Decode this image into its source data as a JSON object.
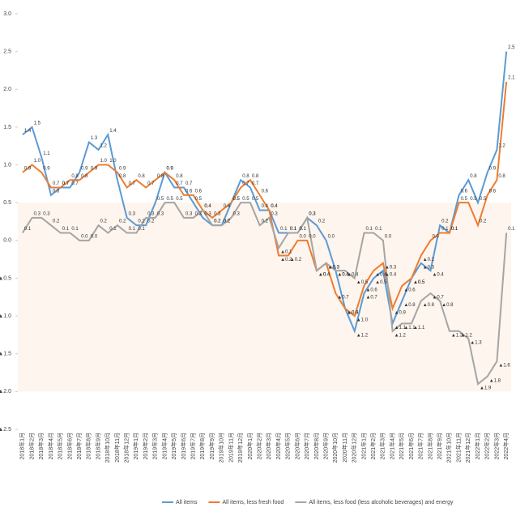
{
  "chart_data": {
    "type": "line",
    "categories": [
      "2018年1月",
      "2018年2月",
      "2018年3月",
      "2018年4月",
      "2018年5月",
      "2018年6月",
      "2018年7月",
      "2018年8月",
      "2018年9月",
      "2018年10月",
      "2018年11月",
      "2018年12月",
      "2019年1月",
      "2019年2月",
      "2019年3月",
      "2019年4月",
      "2019年5月",
      "2019年6月",
      "2019年7月",
      "2019年8月",
      "2019年9月",
      "2019年10月",
      "2019年11月",
      "2019年12月",
      "2020年1月",
      "2020年2月",
      "2020年3月",
      "2020年4月",
      "2020年5月",
      "2020年6月",
      "2020年7月",
      "2020年8月",
      "2020年9月",
      "2020年10月",
      "2020年11月",
      "2020年12月",
      "2021年1月",
      "2021年2月",
      "2021年3月",
      "2021年4月",
      "2021年5月",
      "2021年6月",
      "2021年7月",
      "2021年8月",
      "2021年9月",
      "2021年10月",
      "2021年11月",
      "2021年12月",
      "2022年1月",
      "2022年2月",
      "2022年3月",
      "2022年4月"
    ],
    "series": [
      {
        "name": "All items",
        "color": "#5b9bd5",
        "values": [
          1.4,
          1.5,
          1.1,
          0.6,
          0.7,
          0.7,
          0.9,
          1.3,
          1.2,
          1.4,
          0.8,
          0.3,
          0.2,
          0.2,
          0.5,
          0.9,
          0.7,
          0.7,
          0.5,
          0.3,
          0.2,
          0.2,
          0.5,
          0.8,
          0.7,
          0.4,
          0.4,
          0.1,
          0.1,
          0.1,
          0.3,
          0.2,
          0,
          -0.4,
          -0.9,
          -1.2,
          -0.7,
          -0.5,
          -0.4,
          -1.1,
          -0.8,
          -0.5,
          -0.3,
          -0.4,
          0.2,
          0.1,
          0.6,
          0.8,
          0.5,
          0.9,
          1.2,
          2.5
        ],
        "value_labels": [
          "1.4",
          "1.5",
          "1.1",
          "0.6",
          "0.7",
          "0.7",
          "0.9",
          "1.3",
          "1.2",
          "1.4",
          "0.8",
          "0.3",
          "0.2",
          "0.2",
          "0.5",
          "0.9",
          "0.7",
          "0.7",
          "0.5",
          "0.3",
          "0.2",
          "0.2",
          "0.5",
          "0.8",
          "0.7",
          "0.4",
          "0.4",
          "0.1",
          "0.1",
          "0.1",
          "0.3",
          "0.2",
          "0.0",
          "▲0.4",
          "▲0.9",
          "▲1.2",
          "▲0.7",
          "▲0.5",
          "▲0.4",
          "▲1.1",
          "▲0.8",
          "▲0.5",
          "▲0.3",
          "▲0.4",
          "0.2",
          "0.1",
          "0.6",
          "0.8",
          "0.5",
          "0.9",
          "1.2",
          "2.5"
        ]
      },
      {
        "name": "All items, less fresh food",
        "color": "#ed7d31",
        "values": [
          0.9,
          1.0,
          0.9,
          0.7,
          0.7,
          0.8,
          0.8,
          0.9,
          1.0,
          1.0,
          0.9,
          0.7,
          0.8,
          0.7,
          0.8,
          0.9,
          0.8,
          0.6,
          0.6,
          0.4,
          0.3,
          0.4,
          0.5,
          0.7,
          0.8,
          0.6,
          0.4,
          -0.2,
          -0.2,
          0,
          0,
          -0.4,
          -0.3,
          -0.7,
          -0.9,
          -1.0,
          -0.6,
          -0.4,
          -0.3,
          -0.9,
          -0.6,
          -0.5,
          -0.2,
          0,
          0.1,
          0.1,
          0.5,
          0.5,
          0.2,
          0.6,
          0.8,
          2.1
        ],
        "value_labels": [
          "0.9",
          "1.0",
          "0.9",
          "0.7",
          "0.7",
          "0.8",
          "0.8",
          "0.9",
          "1.0",
          "1.0",
          "0.9",
          "0.7",
          "0.8",
          "0.7",
          "0.8",
          "0.9",
          "0.8",
          "0.6",
          "0.6",
          "0.4",
          "0.3",
          "0.4",
          "0.5",
          "0.7",
          "0.8",
          "0.6",
          "0.4",
          "▲0.2",
          "▲0.2",
          "0.0",
          "0.0",
          "▲0.4",
          "▲0.3",
          "▲0.7",
          "▲0.9",
          "▲1.0",
          "▲0.6",
          "▲0.4",
          "▲0.3",
          "▲0.9",
          "▲0.6",
          "▲0.5",
          "▲0.2",
          "0.0",
          "0.1",
          "0.1",
          "0.5",
          "0.5",
          "0.2",
          "0.6",
          "0.8",
          "2.1"
        ]
      },
      {
        "name": "All items, less food (less alcoholic beverages) and energy",
        "color": "#a5a5a5",
        "values": [
          0.1,
          0.3,
          0.3,
          0.2,
          0.1,
          0.1,
          0,
          0,
          0.2,
          0.1,
          0.2,
          0.1,
          0.1,
          0.3,
          0.3,
          0.5,
          0.5,
          0.3,
          0.3,
          0.4,
          0.2,
          0.2,
          0.3,
          0.5,
          0.5,
          0.2,
          0.3,
          -0.1,
          0.1,
          0.1,
          0.3,
          -0.4,
          -0.3,
          -0.4,
          -0.4,
          -0.5,
          0.1,
          0.1,
          0,
          -1.2,
          -1.1,
          -1.1,
          -0.8,
          -0.7,
          -0.8,
          -1.2,
          -1.2,
          -1.3,
          -1.9,
          -1.8,
          -1.6,
          0.1
        ],
        "value_labels": [
          "0.1",
          "0.3",
          "0.3",
          "0.2",
          "0.1",
          "0.1",
          "0.0",
          "0.0",
          "0.2",
          "0.1",
          "0.2",
          "0.1",
          "0.1",
          "0.3",
          "0.3",
          "0.5",
          "0.5",
          "0.3",
          "0.3",
          "0.4",
          "0.2",
          "0.2",
          "0.3",
          "0.5",
          "0.5",
          "0.2",
          "0.3",
          "▲0.1",
          "0.1",
          "0.1",
          "0.3",
          "▲0.4",
          "▲0.3",
          "▲0.4",
          "▲0.4",
          "▲0.5",
          "0.1",
          "0.1",
          "0.0",
          "▲1.2",
          "▲1.1",
          "▲1.1",
          "▲0.8",
          "▲0.7",
          "▲0.8",
          "▲1.2",
          "▲1.2",
          "▲1.3",
          "▲1.9",
          "▲1.8",
          "▲1.6",
          "0.1"
        ]
      }
    ],
    "ylim": [
      -2.5,
      3.0
    ],
    "yticks": [
      {
        "value": 3.0,
        "label": "3.0"
      },
      {
        "value": 2.5,
        "label": "2.5"
      },
      {
        "value": 2.0,
        "label": "2.0"
      },
      {
        "value": 1.5,
        "label": "1.5"
      },
      {
        "value": 1.0,
        "label": "1.0"
      },
      {
        "value": 0.5,
        "label": "0.5"
      },
      {
        "value": 0,
        "label": "0.0"
      },
      {
        "value": -0.5,
        "label": "▲0.5"
      },
      {
        "value": -1.0,
        "label": "▲1.0"
      },
      {
        "value": -1.5,
        "label": "▲1.5"
      },
      {
        "value": -2.0,
        "label": "▲2.0"
      },
      {
        "value": -2.5,
        "label": "▲2.5"
      }
    ],
    "legend": "bottom"
  }
}
